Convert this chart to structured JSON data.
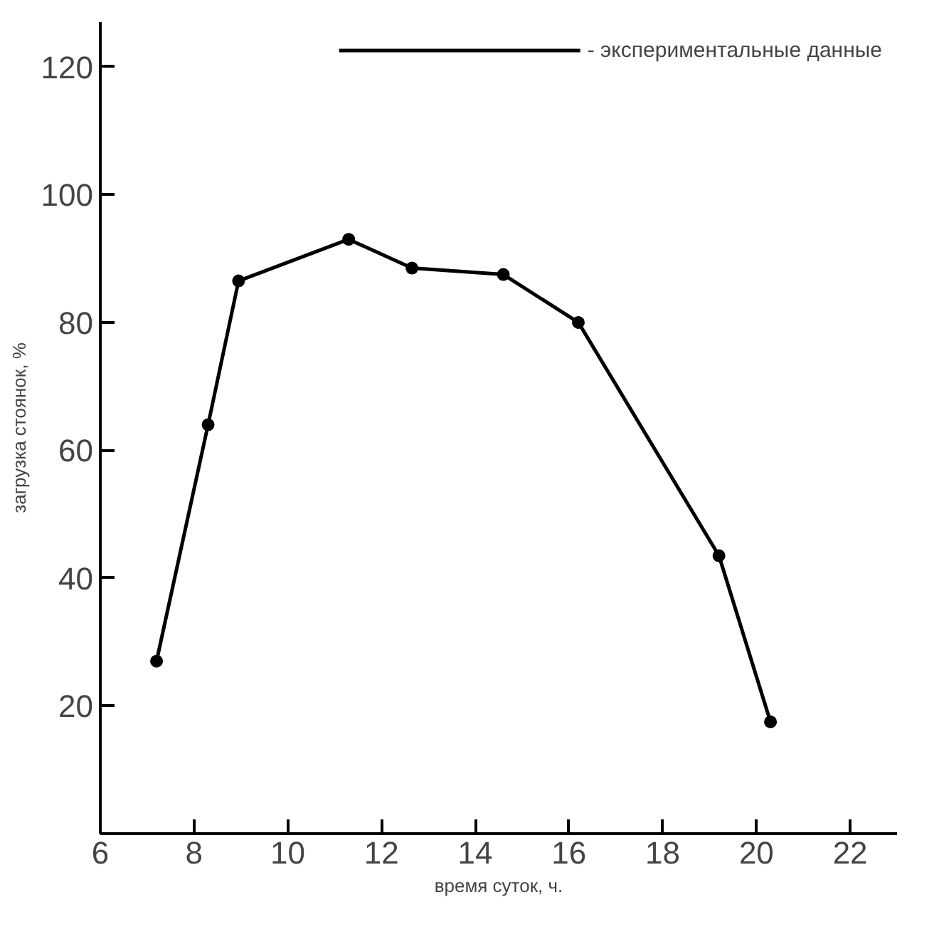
{
  "chart_data": {
    "type": "line",
    "xlabel": "время суток, ч.",
    "ylabel": "загрузка стоянок, %",
    "x": [
      7.2,
      8.3,
      8.95,
      11.3,
      12.65,
      14.6,
      16.2,
      19.2,
      20.3
    ],
    "series": [
      {
        "name": "- экспериментальные данные",
        "color": "#000000",
        "values": [
          27,
          64,
          86.5,
          93,
          88.5,
          87.5,
          80,
          43.5,
          17.5
        ]
      }
    ],
    "xlim": [
      6,
      23
    ],
    "xticks": [
      6,
      8,
      10,
      12,
      14,
      16,
      18,
      20,
      22
    ],
    "ylim": [
      0,
      127
    ],
    "yticks": [
      20,
      40,
      60,
      80,
      100,
      120
    ],
    "grid": false,
    "legend": "top right",
    "marker": "circle",
    "line_style": "solid"
  }
}
